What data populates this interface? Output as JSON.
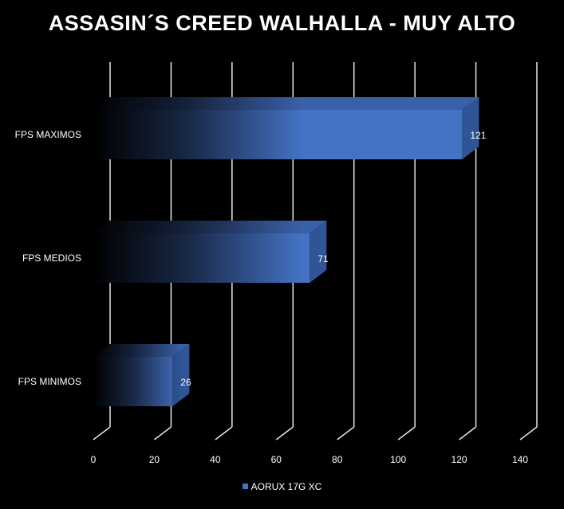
{
  "chart_data": {
    "type": "bar",
    "orientation": "horizontal",
    "title": "ASSASIN´S CREED WALHALLA - MUY ALTO",
    "categories": [
      "FPS MAXIMOS",
      "FPS MEDIOS",
      "FPS MINIMOS"
    ],
    "series": [
      {
        "name": "AORUX 17G XC",
        "values": [
          121,
          71,
          26
        ],
        "color": "#4472C4"
      }
    ],
    "xlim": [
      0,
      140
    ],
    "xticks": [
      0,
      20,
      40,
      60,
      80,
      100,
      120,
      140
    ],
    "grid": true,
    "legend": "bottom-center",
    "style": "3d"
  }
}
